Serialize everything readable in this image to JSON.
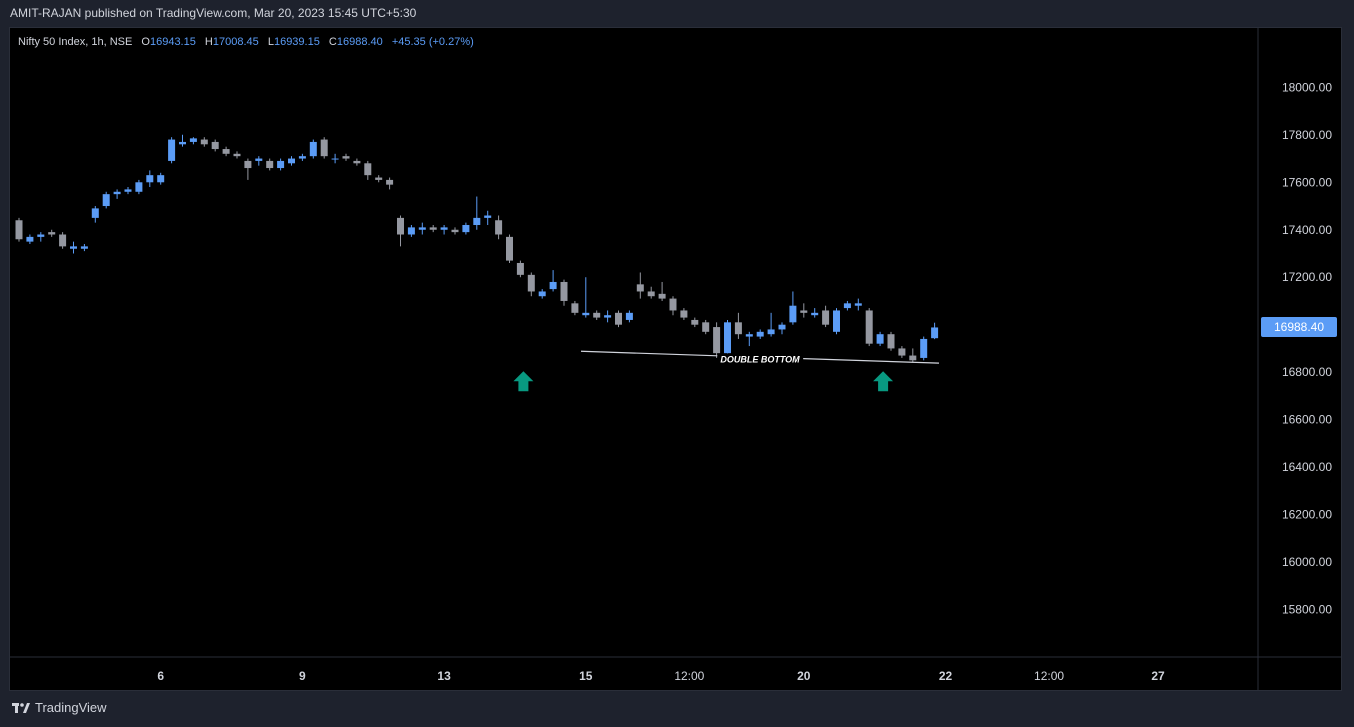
{
  "header": {
    "published_line": "AMIT-RAJAN published on TradingView.com, Mar 20, 2023 15:45 UTC+5:30"
  },
  "legend": {
    "symbol": "Nifty 50 Index, 1h, NSE",
    "open_label": "O",
    "open": "16943.15",
    "high_label": "H",
    "high": "17008.45",
    "low_label": "L",
    "low": "16939.15",
    "close_label": "C",
    "close": "16988.40",
    "change": "+45.35 (+0.27%)"
  },
  "last_price": "16988.40",
  "annotation": {
    "text": "DOUBLE BOTTOM"
  },
  "footer": {
    "brand": "TradingView"
  },
  "colors": {
    "up": "#5b9cf6",
    "down": "#9598a1",
    "arrow": "#089981",
    "background": "#000000",
    "frame": "#1e222d"
  },
  "chart_data": {
    "type": "candlestick",
    "symbol": "Nifty 50 Index",
    "interval": "1h",
    "exchange": "NSE",
    "y_ticks": [
      "18000.00",
      "17800.00",
      "17600.00",
      "17400.00",
      "17200.00",
      "17000.00",
      "16800.00",
      "16600.00",
      "16400.00",
      "16200.00",
      "16000.00",
      "15800.00"
    ],
    "ylim": [
      15600,
      18250
    ],
    "x_ticks": [
      {
        "label": "12:00",
        "index": -5,
        "bold": false
      },
      {
        "label": "6",
        "index": 13,
        "bold": true
      },
      {
        "label": "9",
        "index": 26,
        "bold": true
      },
      {
        "label": "13",
        "index": 39,
        "bold": true
      },
      {
        "label": "15",
        "index": 52,
        "bold": true
      },
      {
        "label": "12:00",
        "index": 61.5,
        "bold": false
      },
      {
        "label": "20",
        "index": 72,
        "bold": true
      },
      {
        "label": "22",
        "index": 85,
        "bold": true
      },
      {
        "label": "12:00",
        "index": 94.5,
        "bold": false
      },
      {
        "label": "27",
        "index": 104.5,
        "bold": true
      }
    ],
    "candles": [
      {
        "o": 17440,
        "h": 17450,
        "l": 17350,
        "c": 17360
      },
      {
        "o": 17350,
        "h": 17380,
        "l": 17340,
        "c": 17370
      },
      {
        "o": 17370,
        "h": 17390,
        "l": 17350,
        "c": 17380
      },
      {
        "o": 17390,
        "h": 17400,
        "l": 17370,
        "c": 17380
      },
      {
        "o": 17380,
        "h": 17390,
        "l": 17320,
        "c": 17330
      },
      {
        "o": 17320,
        "h": 17350,
        "l": 17300,
        "c": 17330
      },
      {
        "o": 17320,
        "h": 17340,
        "l": 17310,
        "c": 17330
      },
      {
        "o": 17450,
        "h": 17500,
        "l": 17430,
        "c": 17490
      },
      {
        "o": 17500,
        "h": 17560,
        "l": 17490,
        "c": 17550
      },
      {
        "o": 17550,
        "h": 17570,
        "l": 17530,
        "c": 17560
      },
      {
        "o": 17560,
        "h": 17580,
        "l": 17550,
        "c": 17570
      },
      {
        "o": 17560,
        "h": 17610,
        "l": 17550,
        "c": 17600
      },
      {
        "o": 17600,
        "h": 17650,
        "l": 17580,
        "c": 17630
      },
      {
        "o": 17600,
        "h": 17640,
        "l": 17590,
        "c": 17630
      },
      {
        "o": 17690,
        "h": 17790,
        "l": 17680,
        "c": 17780
      },
      {
        "o": 17760,
        "h": 17800,
        "l": 17750,
        "c": 17770
      },
      {
        "o": 17770,
        "h": 17790,
        "l": 17760,
        "c": 17785
      },
      {
        "o": 17780,
        "h": 17790,
        "l": 17750,
        "c": 17760
      },
      {
        "o": 17770,
        "h": 17780,
        "l": 17730,
        "c": 17740
      },
      {
        "o": 17740,
        "h": 17750,
        "l": 17710,
        "c": 17720
      },
      {
        "o": 17720,
        "h": 17730,
        "l": 17700,
        "c": 17710
      },
      {
        "o": 17690,
        "h": 17700,
        "l": 17610,
        "c": 17660
      },
      {
        "o": 17690,
        "h": 17710,
        "l": 17670,
        "c": 17700
      },
      {
        "o": 17690,
        "h": 17700,
        "l": 17650,
        "c": 17660
      },
      {
        "o": 17660,
        "h": 17700,
        "l": 17650,
        "c": 17690
      },
      {
        "o": 17680,
        "h": 17710,
        "l": 17670,
        "c": 17700
      },
      {
        "o": 17700,
        "h": 17720,
        "l": 17690,
        "c": 17710
      },
      {
        "o": 17710,
        "h": 17780,
        "l": 17700,
        "c": 17770
      },
      {
        "o": 17780,
        "h": 17790,
        "l": 17700,
        "c": 17710
      },
      {
        "o": 17700,
        "h": 17720,
        "l": 17680,
        "c": 17700
      },
      {
        "o": 17710,
        "h": 17720,
        "l": 17690,
        "c": 17700
      },
      {
        "o": 17690,
        "h": 17700,
        "l": 17670,
        "c": 17680
      },
      {
        "o": 17680,
        "h": 17690,
        "l": 17610,
        "c": 17630
      },
      {
        "o": 17620,
        "h": 17630,
        "l": 17600,
        "c": 17610
      },
      {
        "o": 17610,
        "h": 17620,
        "l": 17570,
        "c": 17590
      },
      {
        "o": 17450,
        "h": 17460,
        "l": 17330,
        "c": 17380
      },
      {
        "o": 17380,
        "h": 17420,
        "l": 17370,
        "c": 17410
      },
      {
        "o": 17400,
        "h": 17430,
        "l": 17380,
        "c": 17410
      },
      {
        "o": 17410,
        "h": 17420,
        "l": 17390,
        "c": 17400
      },
      {
        "o": 17400,
        "h": 17420,
        "l": 17380,
        "c": 17410
      },
      {
        "o": 17400,
        "h": 17410,
        "l": 17380,
        "c": 17390
      },
      {
        "o": 17390,
        "h": 17430,
        "l": 17380,
        "c": 17420
      },
      {
        "o": 17420,
        "h": 17540,
        "l": 17400,
        "c": 17450
      },
      {
        "o": 17450,
        "h": 17480,
        "l": 17420,
        "c": 17460
      },
      {
        "o": 17440,
        "h": 17460,
        "l": 17360,
        "c": 17380
      },
      {
        "o": 17370,
        "h": 17380,
        "l": 17260,
        "c": 17270
      },
      {
        "o": 17260,
        "h": 17270,
        "l": 17200,
        "c": 17210
      },
      {
        "o": 17210,
        "h": 17220,
        "l": 17120,
        "c": 17140
      },
      {
        "o": 17120,
        "h": 17150,
        "l": 17110,
        "c": 17140
      },
      {
        "o": 17150,
        "h": 17230,
        "l": 17140,
        "c": 17180
      },
      {
        "o": 17180,
        "h": 17190,
        "l": 17080,
        "c": 17100
      },
      {
        "o": 17090,
        "h": 17100,
        "l": 17040,
        "c": 17050
      },
      {
        "o": 17040,
        "h": 17200,
        "l": 17030,
        "c": 17050
      },
      {
        "o": 17050,
        "h": 17060,
        "l": 17020,
        "c": 17030
      },
      {
        "o": 17030,
        "h": 17060,
        "l": 17010,
        "c": 17040
      },
      {
        "o": 17050,
        "h": 17060,
        "l": 16990,
        "c": 17000
      },
      {
        "o": 17020,
        "h": 17060,
        "l": 17010,
        "c": 17050
      },
      {
        "o": 17170,
        "h": 17220,
        "l": 17110,
        "c": 17140
      },
      {
        "o": 17140,
        "h": 17160,
        "l": 17110,
        "c": 17120
      },
      {
        "o": 17130,
        "h": 17180,
        "l": 17100,
        "c": 17110
      },
      {
        "o": 17110,
        "h": 17120,
        "l": 17040,
        "c": 17060
      },
      {
        "o": 17060,
        "h": 17070,
        "l": 17020,
        "c": 17030
      },
      {
        "o": 17020,
        "h": 17030,
        "l": 16990,
        "c": 17000
      },
      {
        "o": 17010,
        "h": 17020,
        "l": 16960,
        "c": 16970
      },
      {
        "o": 16990,
        "h": 17010,
        "l": 16860,
        "c": 16880
      },
      {
        "o": 16880,
        "h": 17020,
        "l": 16860,
        "c": 17010
      },
      {
        "o": 17010,
        "h": 17050,
        "l": 16940,
        "c": 16960
      },
      {
        "o": 16950,
        "h": 16970,
        "l": 16910,
        "c": 16960
      },
      {
        "o": 16950,
        "h": 16980,
        "l": 16940,
        "c": 16970
      },
      {
        "o": 16960,
        "h": 17050,
        "l": 16950,
        "c": 16980
      },
      {
        "o": 16980,
        "h": 17010,
        "l": 16960,
        "c": 17000
      },
      {
        "o": 17010,
        "h": 17140,
        "l": 17000,
        "c": 17080
      },
      {
        "o": 17060,
        "h": 17090,
        "l": 17030,
        "c": 17050
      },
      {
        "o": 17040,
        "h": 17070,
        "l": 17030,
        "c": 17050
      },
      {
        "o": 17060,
        "h": 17080,
        "l": 16990,
        "c": 17000
      },
      {
        "o": 16970,
        "h": 17070,
        "l": 16960,
        "c": 17060
      },
      {
        "o": 17070,
        "h": 17100,
        "l": 17060,
        "c": 17090
      },
      {
        "o": 17080,
        "h": 17110,
        "l": 17060,
        "c": 17090
      },
      {
        "o": 17060,
        "h": 17070,
        "l": 16910,
        "c": 16920
      },
      {
        "o": 16920,
        "h": 16970,
        "l": 16910,
        "c": 16960
      },
      {
        "o": 16960,
        "h": 16970,
        "l": 16890,
        "c": 16900
      },
      {
        "o": 16900,
        "h": 16910,
        "l": 16860,
        "c": 16870
      },
      {
        "o": 16870,
        "h": 16900,
        "l": 16840,
        "c": 16850
      },
      {
        "o": 16860,
        "h": 16950,
        "l": 16850,
        "c": 16940
      },
      {
        "o": 16943.15,
        "h": 17008.45,
        "l": 16939.15,
        "c": 16988.4
      }
    ],
    "support_line": {
      "start": [
        -2,
        16888
      ],
      "end": [
        62,
        16838
      ]
    },
    "arrows": [
      {
        "index": 46,
        "value": 16770
      },
      {
        "index": 79,
        "value": 16770
      }
    ]
  }
}
